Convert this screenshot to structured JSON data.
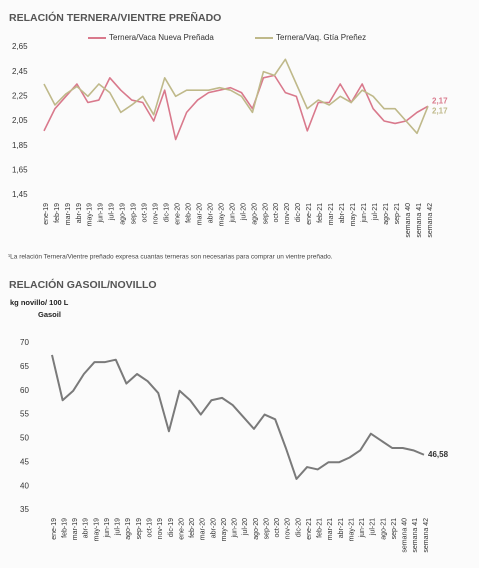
{
  "chart_data": [
    {
      "type": "line",
      "title": "RELACIÓN TERNERA/VIENTRE PREÑADO",
      "note": "¹La relación Ternera/Vientre preñado expresa cuantas terneras son necesarias para comprar un vientre preñado.",
      "categories": [
        "ene-19",
        "feb-19",
        "mar-19",
        "abr-19",
        "may-19",
        "jun-19",
        "jul-19",
        "ago-19",
        "sep-19",
        "oct-19",
        "nov-19",
        "dic-19",
        "ene-20",
        "feb-20",
        "mar-20",
        "abr-20",
        "may-20",
        "jun-20",
        "jul-20",
        "ago-20",
        "sep-20",
        "oct-20",
        "nov-20",
        "dic-20",
        "ene-21",
        "feb-21",
        "mar-21",
        "abr-21",
        "may-21",
        "jun-21",
        "jul-21",
        "ago-21",
        "sep-21",
        "semana 40",
        "semana 41",
        "semana 42"
      ],
      "series": [
        {
          "name": "Ternera/Vaca Nueva Preñada",
          "color": "#d9798c",
          "values": [
            1.97,
            2.15,
            2.25,
            2.35,
            2.2,
            2.22,
            2.4,
            2.3,
            2.22,
            2.2,
            2.05,
            2.3,
            1.9,
            2.12,
            2.22,
            2.28,
            2.3,
            2.32,
            2.28,
            2.15,
            2.4,
            2.42,
            2.28,
            2.25,
            1.97,
            2.2,
            2.2,
            2.35,
            2.2,
            2.35,
            2.15,
            2.05,
            2.03,
            2.05,
            2.12,
            2.17
          ],
          "value_labels": [
            null,
            null,
            null,
            null,
            null,
            null,
            null,
            null,
            null,
            null,
            null,
            null,
            null,
            null,
            null,
            null,
            null,
            null,
            null,
            null,
            null,
            null,
            null,
            null,
            null,
            null,
            null,
            null,
            null,
            null,
            null,
            null,
            null,
            null,
            null,
            "2,17"
          ]
        },
        {
          "name": "Ternera/Vaq. Gtía Preñez",
          "color": "#bfb98a",
          "values": [
            2.35,
            2.18,
            2.27,
            2.33,
            2.25,
            2.35,
            2.28,
            2.12,
            2.18,
            2.25,
            2.1,
            2.4,
            2.25,
            2.3,
            2.3,
            2.3,
            2.32,
            2.3,
            2.25,
            2.12,
            2.45,
            2.42,
            2.55,
            2.35,
            2.15,
            2.22,
            2.18,
            2.25,
            2.2,
            2.3,
            2.25,
            2.15,
            2.15,
            2.05,
            1.95,
            2.17
          ],
          "value_labels": [
            null,
            null,
            null,
            null,
            null,
            null,
            null,
            null,
            null,
            null,
            null,
            null,
            null,
            null,
            null,
            null,
            null,
            null,
            null,
            null,
            null,
            null,
            null,
            null,
            null,
            null,
            null,
            null,
            null,
            null,
            null,
            null,
            null,
            null,
            null,
            "2,17"
          ]
        }
      ],
      "ylim": [
        1.45,
        2.65
      ],
      "yticks": [
        {
          "value": 1.45,
          "label": "1,45"
        },
        {
          "value": 1.65,
          "label": "1,65"
        },
        {
          "value": 1.85,
          "label": "1,85"
        },
        {
          "value": 2.05,
          "label": "2,05"
        },
        {
          "value": 2.25,
          "label": "2,25"
        },
        {
          "value": 2.45,
          "label": "2,45"
        },
        {
          "value": 2.65,
          "label": "2,65"
        }
      ],
      "legend": "top"
    },
    {
      "type": "line",
      "title": "RELACIÓN GASOIL/NOVILLO",
      "y_label": [
        "kg novillo/ 100 L",
        "Gasoil"
      ],
      "categories": [
        "ene-19",
        "feb-19",
        "mar-19",
        "abr-19",
        "may-19",
        "jun-19",
        "jul-19",
        "ago-19",
        "sep-19",
        "oct-19",
        "nov-19",
        "dic-19",
        "ene-20",
        "feb-20",
        "mar-20",
        "abr-20",
        "may-20",
        "jun-20",
        "jul-20",
        "ago-20",
        "sep-20",
        "oct-20",
        "nov-20",
        "dic-20",
        "ene-21",
        "feb-21",
        "mar-21",
        "abr-21",
        "may-21",
        "jun-21",
        "jul-21",
        "ago-21",
        "sep-21",
        "semana 40",
        "semana 41",
        "semana 42"
      ],
      "series": [
        {
          "color": "#7a7a7a",
          "values": [
            67.5,
            58,
            60,
            63.5,
            66,
            66,
            66.5,
            61.5,
            63.5,
            62,
            59.5,
            51.5,
            60,
            58,
            55,
            58,
            58.5,
            57,
            54.5,
            52,
            55,
            54,
            48,
            41.5,
            44,
            43.5,
            45,
            45,
            46,
            47.5,
            51,
            49.5,
            48,
            48,
            47.5,
            46.58
          ],
          "value_labels": [
            null,
            null,
            null,
            null,
            null,
            null,
            null,
            null,
            null,
            null,
            null,
            null,
            null,
            null,
            null,
            null,
            null,
            null,
            null,
            null,
            null,
            null,
            null,
            null,
            null,
            null,
            null,
            null,
            null,
            null,
            null,
            null,
            null,
            null,
            null,
            "46,58"
          ]
        }
      ],
      "ylim": [
        35,
        70
      ],
      "yticks": [
        35,
        40,
        45,
        50,
        55,
        60,
        65,
        70
      ]
    }
  ]
}
